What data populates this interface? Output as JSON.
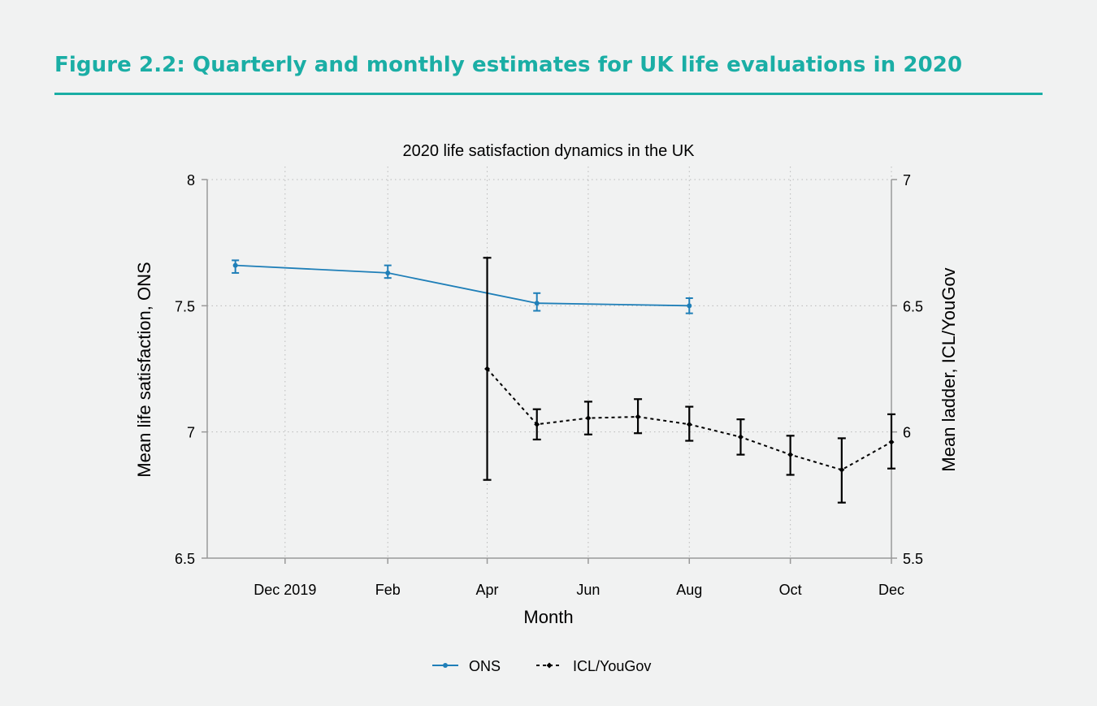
{
  "figure": {
    "title": "Figure 2.2: Quarterly and monthly estimates for UK life evaluations in 2020"
  },
  "colors": {
    "accent": "#1aaea5",
    "ons": "#1f7fb8",
    "yougov": "#000000",
    "axis": "#999999",
    "grid": "#b9b9b9",
    "background": "#f1f2f2"
  },
  "chart_data": {
    "type": "line",
    "title": "2020 life satisfaction dynamics in the UK",
    "xlabel": "Month",
    "ylabel_left": "Mean life satisfaction, ONS",
    "ylabel_right": "Mean ladder, ICL/YouGov",
    "x_range": [
      "2019-10-15",
      "2020-12-01"
    ],
    "x_ticks": [
      {
        "date": "2019-12-01",
        "label": "Dec 2019"
      },
      {
        "date": "2020-02-01",
        "label": "Feb"
      },
      {
        "date": "2020-04-01",
        "label": "Apr"
      },
      {
        "date": "2020-06-01",
        "label": "Jun"
      },
      {
        "date": "2020-08-01",
        "label": "Aug"
      },
      {
        "date": "2020-10-01",
        "label": "Oct"
      },
      {
        "date": "2020-12-01",
        "label": "Dec"
      }
    ],
    "y_left": {
      "range": [
        6.5,
        8
      ],
      "ticks": [
        "6.5",
        "7",
        "7.5",
        "8"
      ]
    },
    "y_right": {
      "range": [
        5.5,
        7
      ],
      "ticks": [
        "5.5",
        "6",
        "6.5",
        "7"
      ]
    },
    "grid": true,
    "legend_position": "bottom",
    "series": [
      {
        "name": "ONS",
        "axis": "left",
        "line_style": "solid",
        "color": "#1f7fb8",
        "points": [
          {
            "date": "2019-11-01",
            "y": 7.66,
            "low": 7.63,
            "high": 7.68
          },
          {
            "date": "2020-02-01",
            "y": 7.63,
            "low": 7.61,
            "high": 7.66
          },
          {
            "date": "2020-05-01",
            "y": 7.51,
            "low": 7.48,
            "high": 7.55
          },
          {
            "date": "2020-08-01",
            "y": 7.5,
            "low": 7.47,
            "high": 7.53
          }
        ]
      },
      {
        "name": "ICL/YouGov",
        "axis": "right",
        "line_style": "dashed",
        "color": "#000000",
        "points": [
          {
            "date": "2020-04-01",
            "y": 6.25,
            "low": 5.81,
            "high": 6.69
          },
          {
            "date": "2020-05-01",
            "y": 6.03,
            "low": 5.97,
            "high": 6.09
          },
          {
            "date": "2020-06-01",
            "y": 6.055,
            "low": 5.99,
            "high": 6.12
          },
          {
            "date": "2020-07-01",
            "y": 6.06,
            "low": 5.995,
            "high": 6.13
          },
          {
            "date": "2020-08-01",
            "y": 6.03,
            "low": 5.965,
            "high": 6.1
          },
          {
            "date": "2020-09-01",
            "y": 5.98,
            "low": 5.91,
            "high": 6.05
          },
          {
            "date": "2020-10-01",
            "y": 5.91,
            "low": 5.83,
            "high": 5.985
          },
          {
            "date": "2020-11-01",
            "y": 5.85,
            "low": 5.72,
            "high": 5.975
          },
          {
            "date": "2020-12-01",
            "y": 5.96,
            "low": 5.855,
            "high": 6.07
          }
        ]
      }
    ]
  }
}
